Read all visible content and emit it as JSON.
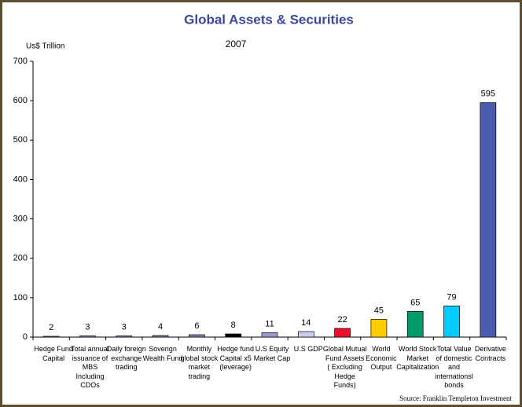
{
  "chart_data": {
    "type": "bar",
    "title": "Global Assets & Securities",
    "subtitle": "2007",
    "y_label": "Us$ Trillion",
    "source": "Source: Franklin Templeton  Investment",
    "categories": [
      "Hedge Fund\nCapital",
      "Total annual\nissuance of\nMBS\nIncluding\nCDOs",
      "Daily foreign\nexchange\ntrading",
      "Soverign\nWealth Fund",
      "Monthly\nglobal stock\nmarket\ntrading",
      "Hedge fund\nCapital x5\n(leverage)",
      "U.S Equity\nMarket Cap",
      "U.S GDP",
      "Global Mutual\nFund Assets\n( Excluding\nHedge\nFunds)",
      "World\nEconomic\nOutput",
      "World Stock\nMarket\nCapitalization",
      "Total Value\nof domestic\nand\ninternationsl\nbonds",
      "Derivative\nContracts"
    ],
    "values": [
      2,
      3,
      3,
      4,
      6,
      8,
      11,
      14,
      22,
      45,
      65,
      79,
      595
    ],
    "colors": [
      "#7f86b4",
      "#7f86b4",
      "#7f86b4",
      "#7f86b4",
      "#7f86b4",
      "#000000",
      "#9a9ad0",
      "#ccccee",
      "#e8102a",
      "#ffcc00",
      "#00996a",
      "#00ccff",
      "#4c5ab0"
    ],
    "ylim": [
      0,
      700
    ],
    "yticks": [
      0,
      100,
      200,
      300,
      400,
      500,
      600,
      700
    ],
    "grid": false
  }
}
